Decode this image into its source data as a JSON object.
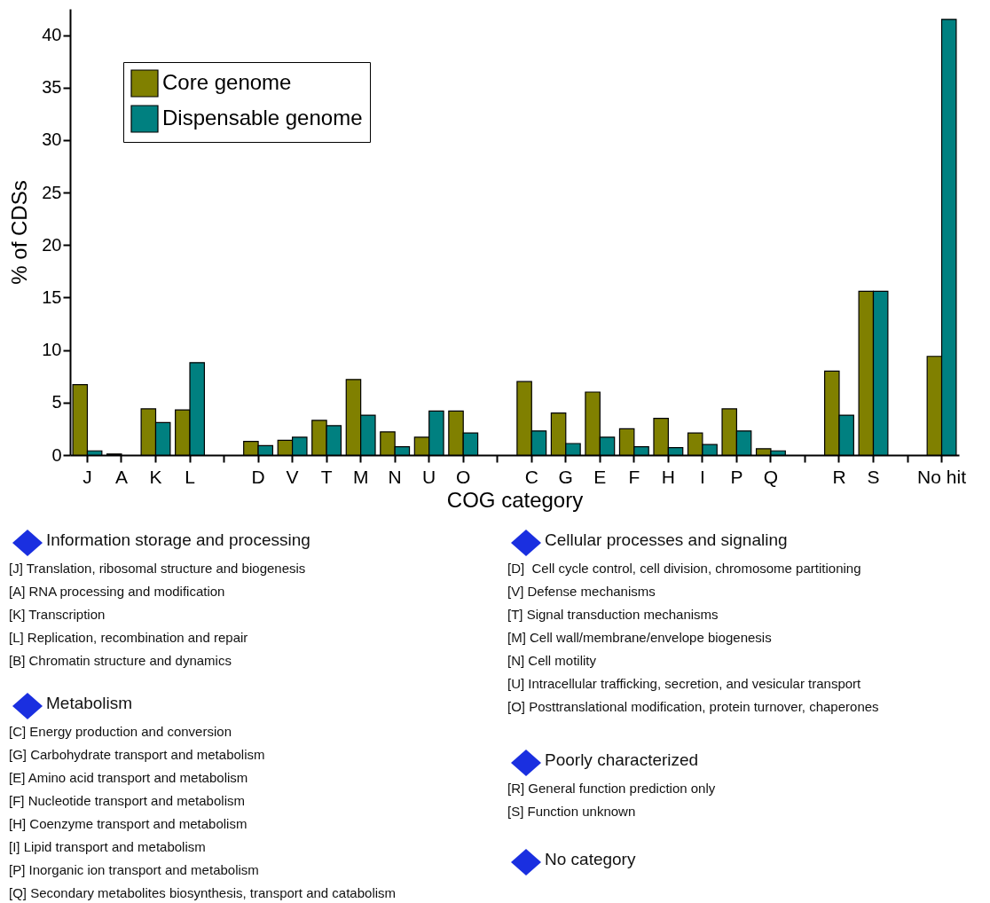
{
  "chart_data": {
    "type": "bar",
    "xlabel": "COG category",
    "ylabel": "% of CDSs",
    "categories": [
      "J",
      "A",
      "K",
      "L",
      null,
      "D",
      "V",
      "T",
      "M",
      "N",
      "U",
      "O",
      null,
      "C",
      "G",
      "E",
      "F",
      "H",
      "I",
      "P",
      "Q",
      null,
      "R",
      "S",
      null,
      "No hit"
    ],
    "series": [
      {
        "name": "Core genome",
        "color": "#808000",
        "values": [
          6.7,
          0.1,
          4.4,
          4.3,
          null,
          1.3,
          1.4,
          3.3,
          7.2,
          2.2,
          1.7,
          4.2,
          null,
          7.0,
          4.0,
          6.0,
          2.5,
          3.5,
          2.1,
          4.4,
          0.6,
          null,
          8.0,
          15.6,
          null,
          9.4
        ]
      },
      {
        "name": "Dispensable genome",
        "color": "#008080",
        "values": [
          0.4,
          null,
          3.1,
          8.8,
          null,
          0.9,
          1.7,
          2.8,
          3.8,
          0.8,
          4.2,
          2.1,
          null,
          2.3,
          1.1,
          1.7,
          0.8,
          0.7,
          1.0,
          2.3,
          0.4,
          null,
          3.8,
          15.6,
          null,
          41.5
        ]
      }
    ],
    "ylim": [
      0,
      42.5
    ],
    "yticks": [
      0,
      5,
      10,
      15,
      20,
      25,
      30,
      35,
      40
    ],
    "grid": false,
    "legend": "top left",
    "annotations": [
      "Information storage and processing",
      "[J] Translation, ribosomal structure and biogenesis",
      "[A] RNA processing and modification",
      "[K] Transcription",
      "[L] Replication, recombination and repair",
      "[B] Chromatin structure and dynamics",
      "Metabolism",
      "[C] Energy production and conversion",
      "[G] Carbohydrate transport and metabolism",
      "[E] Amino acid transport and metabolism",
      "[F] Nucleotide transport and metabolism",
      "[H] Coenzyme transport and metabolism",
      "[I] Lipid transport and metabolism",
      "[P] Inorganic ion transport and metabolism",
      "[Q] Secondary metabolites biosynthesis, transport and catabolism",
      "Cellular processes and signaling",
      "[D]  Cell cycle control, cell division, chromosome partitioning",
      "[V] Defense mechanisms",
      "[T] Signal transduction mechanisms",
      "[M] Cell wall/membrane/envelope biogenesis",
      "[N] Cell motility",
      "[U] Intracellular trafficking, secretion, and vesicular transport",
      "[O] Posttranslational modification, protein turnover, chaperones",
      "Poorly characterized",
      "[R] General function prediction only",
      "[S] Function unknown",
      "No category"
    ]
  }
}
